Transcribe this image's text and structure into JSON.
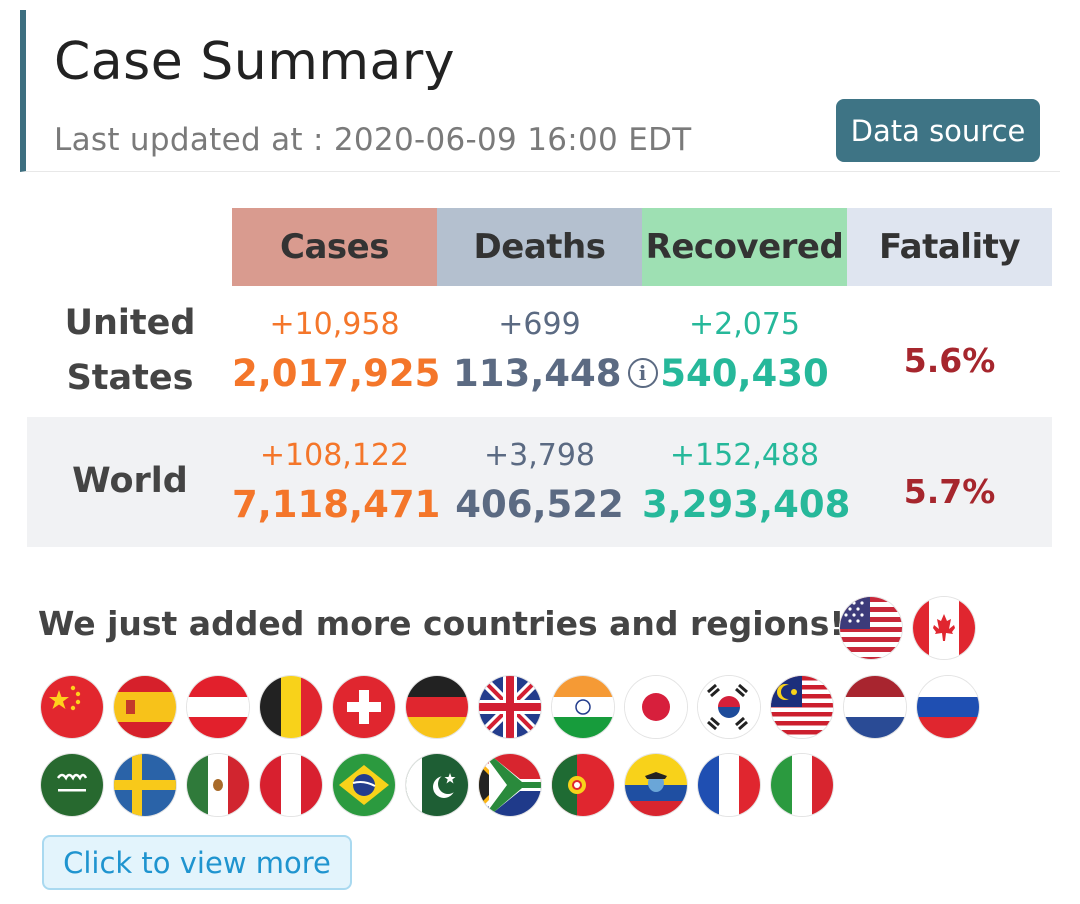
{
  "header": {
    "title": "Case Summary",
    "updated": "Last updated at : 2020-06-09 16:00 EDT",
    "data_source_label": "Data source"
  },
  "table": {
    "columns": [
      "Cases",
      "Deaths",
      "Recovered",
      "Fatality"
    ],
    "rows": [
      {
        "label_line1": "United",
        "label_line2": "States",
        "cases_delta": "+10,958",
        "cases": "2,017,925",
        "deaths_delta": "+699",
        "deaths": "113,448",
        "recovered_delta": "+2,075",
        "recovered": "540,430",
        "fatality": "5.6%"
      },
      {
        "label": "World",
        "cases_delta": "+108,122",
        "cases": "7,118,471",
        "deaths_delta": "+3,798",
        "deaths": "406,522",
        "recovered_delta": "+152,488",
        "recovered": "3,293,408",
        "fatality": "5.7%"
      }
    ]
  },
  "announcement": "We just added more countries and regions!",
  "flags": {
    "row0": [
      "us-flag-icon",
      "canada-flag-icon"
    ],
    "row1": [
      "china-flag-icon",
      "spain-flag-icon",
      "austria-flag-icon",
      "belgium-flag-icon",
      "switzerland-flag-icon",
      "germany-flag-icon",
      "uk-flag-icon",
      "india-flag-icon",
      "japan-flag-icon",
      "south-korea-flag-icon",
      "malaysia-flag-icon",
      "netherlands-flag-icon",
      "russia-flag-icon"
    ],
    "row2": [
      "saudi-arabia-flag-icon",
      "sweden-flag-icon",
      "mexico-flag-icon",
      "peru-flag-icon",
      "brazil-flag-icon",
      "pakistan-flag-icon",
      "south-africa-flag-icon",
      "portugal-flag-icon",
      "ecuador-flag-icon",
      "france-flag-icon",
      "italy-flag-icon"
    ]
  },
  "view_more_label": "Click to view more",
  "colors": {
    "accent": "#3e7485",
    "cases": "#f4762a",
    "deaths": "#5b6a82",
    "recovered": "#26b89a",
    "fatality": "#a6262d"
  }
}
